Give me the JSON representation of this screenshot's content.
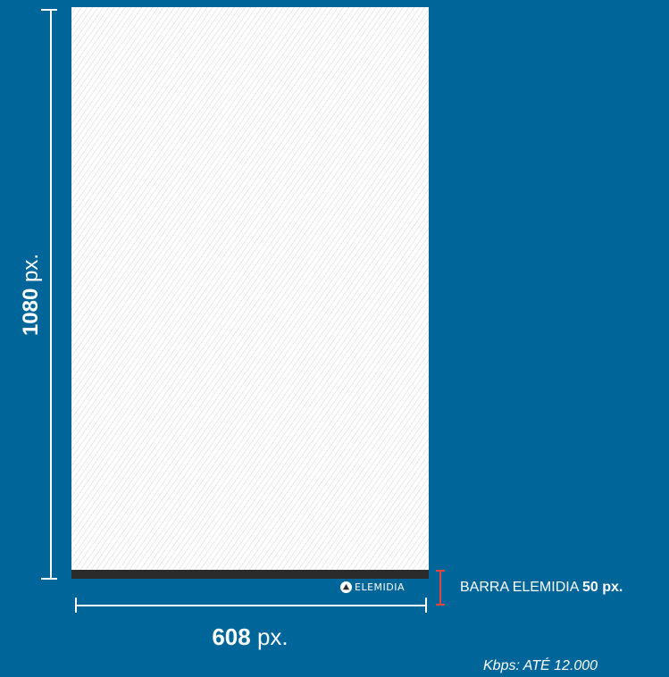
{
  "height_dimension": {
    "value": "1080",
    "unit": "px."
  },
  "width_dimension": {
    "value": "608",
    "unit": "px."
  },
  "brand_bar": {
    "logo_text": "ELEMIDIA",
    "color": "#2b2b2b"
  },
  "bar_label": {
    "text": "BARRA ELEMIDIA",
    "value": "50 px."
  },
  "note": {
    "text": "Kbps: ATÉ 12.000"
  },
  "colors": {
    "background": "#00669a",
    "bracket": "#e0483f"
  }
}
